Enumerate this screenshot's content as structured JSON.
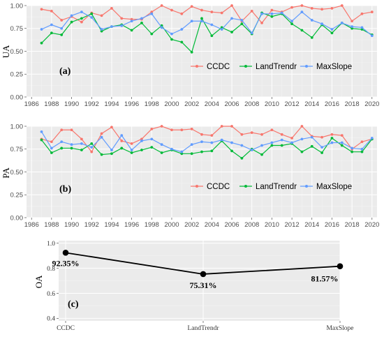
{
  "colors": {
    "CCDC": "#f8766d",
    "LandTrendr": "#00ba38",
    "MaxSlope": "#619cff",
    "oa_line": "#000000"
  },
  "chart_data": [
    {
      "type": "line",
      "panel_label": "(a)",
      "ylabel": "UA",
      "xlabel": "",
      "xlim": [
        1985.5,
        2020.5
      ],
      "ylim": [
        0,
        1
      ],
      "xticks": [
        "1986",
        "1988",
        "1990",
        "1992",
        "1994",
        "1996",
        "1998",
        "2000",
        "2002",
        "2004",
        "2006",
        "2008",
        "2010",
        "2012",
        "2014",
        "2016",
        "2018",
        "2020"
      ],
      "yticks": [
        "0.00",
        "0.25",
        "0.50",
        "0.75",
        "1.00"
      ],
      "grid": true,
      "legend_position": "bottom-right",
      "x": [
        1987,
        1988,
        1989,
        1990,
        1991,
        1992,
        1993,
        1994,
        1995,
        1996,
        1997,
        1998,
        1999,
        2000,
        2001,
        2002,
        2003,
        2004,
        2005,
        2006,
        2007,
        2008,
        2009,
        2010,
        2011,
        2012,
        2013,
        2014,
        2015,
        2016,
        2017,
        2018,
        2019,
        2020
      ],
      "series": [
        {
          "name": "CCDC",
          "values": [
            0.96,
            0.94,
            0.84,
            0.88,
            0.82,
            0.92,
            0.89,
            0.97,
            0.86,
            0.85,
            0.85,
            0.93,
            1.0,
            0.95,
            0.91,
            0.99,
            0.95,
            0.93,
            0.92,
            1.0,
            0.83,
            0.94,
            0.81,
            0.95,
            0.93,
            0.98,
            1.0,
            0.97,
            0.96,
            0.97,
            1.0,
            0.83,
            0.91,
            0.93
          ]
        },
        {
          "name": "LandTrendr",
          "values": [
            0.59,
            0.7,
            0.68,
            0.82,
            0.86,
            0.91,
            0.72,
            0.77,
            0.79,
            0.73,
            0.81,
            0.69,
            0.78,
            0.63,
            0.6,
            0.49,
            0.86,
            0.67,
            0.76,
            0.71,
            0.8,
            0.69,
            0.92,
            0.88,
            0.91,
            0.8,
            0.73,
            0.65,
            0.79,
            0.7,
            0.81,
            0.75,
            0.74,
            0.68
          ]
        },
        {
          "name": "MaxSlope",
          "values": [
            0.74,
            0.79,
            0.75,
            0.89,
            0.93,
            0.87,
            0.74,
            0.77,
            0.78,
            0.83,
            0.86,
            0.91,
            0.76,
            0.69,
            0.74,
            0.83,
            0.83,
            0.79,
            0.74,
            0.86,
            0.84,
            0.7,
            0.91,
            0.91,
            0.92,
            0.83,
            0.93,
            0.84,
            0.8,
            0.74,
            0.81,
            0.77,
            0.76,
            0.67
          ]
        }
      ]
    },
    {
      "type": "line",
      "panel_label": "(b)",
      "ylabel": "PA",
      "xlabel": "",
      "xlim": [
        1985.5,
        2020.5
      ],
      "ylim": [
        0,
        1
      ],
      "xticks": [
        "1986",
        "1988",
        "1990",
        "1992",
        "1994",
        "1996",
        "1998",
        "2000",
        "2002",
        "2004",
        "2006",
        "2008",
        "2010",
        "2012",
        "2014",
        "2016",
        "2018",
        "2020"
      ],
      "yticks": [
        "0.00",
        "0.25",
        "0.50",
        "0.75",
        "1.00"
      ],
      "grid": true,
      "legend_position": "bottom-right",
      "x": [
        1987,
        1988,
        1989,
        1990,
        1991,
        1992,
        1993,
        1994,
        1995,
        1996,
        1997,
        1998,
        1999,
        2000,
        2001,
        2002,
        2003,
        2004,
        2005,
        2006,
        2007,
        2008,
        2009,
        2010,
        2011,
        2012,
        2013,
        2014,
        2015,
        2016,
        2017,
        2018,
        2019,
        2020
      ],
      "series": [
        {
          "name": "CCDC",
          "values": [
            0.86,
            0.83,
            0.96,
            0.96,
            0.86,
            0.72,
            0.92,
            0.99,
            0.84,
            0.81,
            0.86,
            0.97,
            1.0,
            0.96,
            0.96,
            0.97,
            0.91,
            0.9,
            1.0,
            1.0,
            0.91,
            0.93,
            0.91,
            0.96,
            0.91,
            0.87,
            1.0,
            0.89,
            0.88,
            0.91,
            0.9,
            0.75,
            0.83,
            0.86
          ]
        },
        {
          "name": "LandTrendr",
          "values": [
            0.85,
            0.71,
            0.76,
            0.76,
            0.74,
            0.81,
            0.69,
            0.7,
            0.76,
            0.71,
            0.74,
            0.77,
            0.71,
            0.74,
            0.7,
            0.7,
            0.72,
            0.73,
            0.84,
            0.73,
            0.65,
            0.75,
            0.69,
            0.79,
            0.79,
            0.81,
            0.72,
            0.78,
            0.71,
            0.87,
            0.79,
            0.72,
            0.72,
            0.86
          ]
        },
        {
          "name": "MaxSlope",
          "values": [
            0.94,
            0.76,
            0.83,
            0.8,
            0.81,
            0.77,
            0.88,
            0.74,
            0.9,
            0.74,
            0.84,
            0.86,
            0.8,
            0.75,
            0.72,
            0.8,
            0.83,
            0.82,
            0.85,
            0.82,
            0.79,
            0.74,
            0.79,
            0.82,
            0.85,
            0.82,
            0.86,
            0.88,
            0.77,
            0.82,
            0.82,
            0.76,
            0.75,
            0.87
          ]
        }
      ]
    },
    {
      "type": "line",
      "panel_label": "(c)",
      "ylabel": "OA",
      "xlabel": "",
      "categories": [
        "CCDC",
        "LandTrendr",
        "MaxSlope"
      ],
      "values": [
        0.9235,
        0.7531,
        0.8157
      ],
      "data_labels": [
        "92.35%",
        "75.31%",
        "81.57%"
      ],
      "ylim": [
        0.38,
        1.02
      ],
      "yticks": [
        "0.4",
        "0.6",
        "0.8",
        "1.0"
      ],
      "grid": true
    }
  ]
}
